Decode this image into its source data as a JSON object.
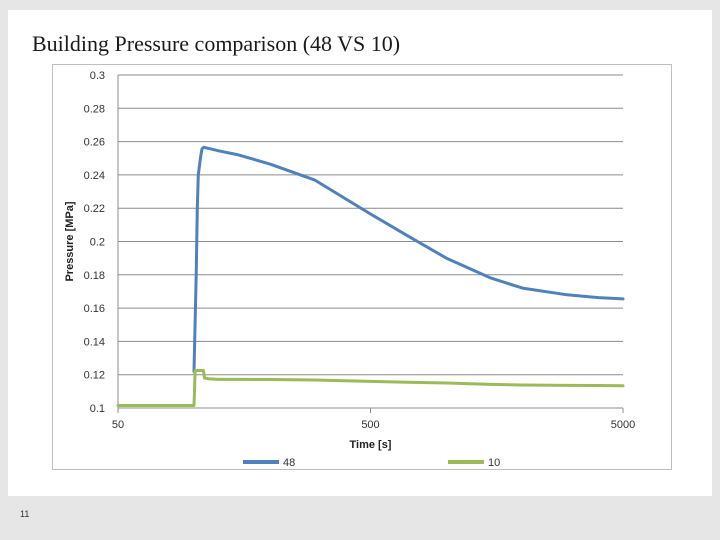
{
  "slide": {
    "title": "Building Pressure comparison (48 VS 10)",
    "page_number": "11"
  },
  "chart_data": {
    "type": "line",
    "title": "",
    "xlabel": "Time [s]",
    "ylabel": "Pressure [MPa]",
    "x_scale": "log",
    "xlim": [
      50,
      5000
    ],
    "ylim": [
      0.1,
      0.3
    ],
    "x_ticks": [
      50,
      500,
      5000
    ],
    "x_tick_labels": [
      "50",
      "500",
      "5000"
    ],
    "y_ticks": [
      0.1,
      0.12,
      0.14,
      0.16,
      0.18,
      0.2,
      0.22,
      0.24,
      0.26,
      0.28,
      0.3
    ],
    "y_tick_labels": [
      "0.1",
      "0.12",
      "0.14",
      "0.16",
      "0.18",
      "0.2",
      "0.22",
      "0.24",
      "0.26",
      "0.28",
      "0.3"
    ],
    "grid": "horizontal",
    "legend_position": "bottom",
    "series": [
      {
        "name": "48",
        "color": "#4f81bd",
        "x": [
          50,
          100,
          102,
          103,
          104,
          106,
          107.5,
          109,
          110,
          115,
          125,
          150,
          200,
          300,
          500,
          700,
          1000,
          1500,
          2000,
          3000,
          4000,
          5000
        ],
        "y": [
          null,
          0.122,
          0.18,
          0.22,
          0.24,
          0.25,
          0.2555,
          0.2565,
          0.2565,
          0.2558,
          0.2545,
          0.252,
          0.2465,
          0.237,
          0.2165,
          0.2035,
          0.19,
          0.178,
          0.172,
          0.168,
          0.1663,
          0.1655
        ]
      },
      {
        "name": "10",
        "color": "#9bbb59",
        "x": [
          50,
          80,
          100,
          100.5,
          101,
          105,
          109,
          110,
          115,
          125,
          150,
          200,
          300,
          500,
          700,
          1000,
          1500,
          2000,
          3000,
          4000,
          5000
        ],
        "y": [
          0.1015,
          0.1015,
          0.1015,
          0.112,
          0.1225,
          0.1225,
          0.1225,
          0.118,
          0.1175,
          0.1172,
          0.1172,
          0.1171,
          0.1168,
          0.116,
          0.1155,
          0.115,
          0.1142,
          0.1138,
          0.1136,
          0.1135,
          0.1134
        ]
      }
    ]
  }
}
